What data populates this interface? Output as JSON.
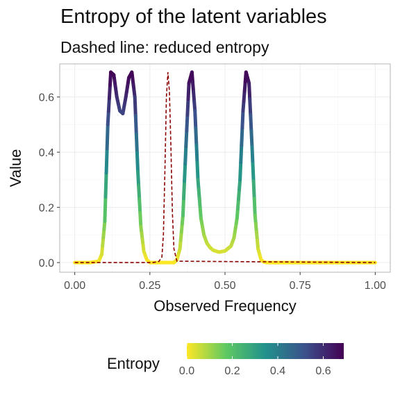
{
  "chart_data": {
    "type": "line",
    "title": "Entropy of the latent variables",
    "subtitle": "Dashed line: reduced entropy",
    "xlabel": "Observed Frequency",
    "ylabel": "Value",
    "xlim": [
      -0.05,
      1.05
    ],
    "ylim": [
      -0.035,
      0.72
    ],
    "x_ticks": [
      "0.00",
      "0.25",
      "0.50",
      "0.75",
      "1.00"
    ],
    "x_tick_values": [
      0,
      0.25,
      0.5,
      0.75,
      1
    ],
    "y_ticks": [
      "0.0",
      "0.2",
      "0.4",
      "0.6"
    ],
    "y_tick_values": [
      0,
      0.2,
      0.4,
      0.6
    ],
    "grid": true,
    "series": [
      {
        "style": "thick-line-colored-by-value",
        "x": [
          0,
          0.05,
          0.08,
          0.09,
          0.1,
          0.11,
          0.12,
          0.13,
          0.14,
          0.15,
          0.16,
          0.17,
          0.18,
          0.19,
          0.2,
          0.21,
          0.22,
          0.23,
          0.24,
          0.25,
          0.26,
          0.27,
          0.28,
          0.29,
          0.3,
          0.31,
          0.33,
          0.34,
          0.35,
          0.36,
          0.37,
          0.38,
          0.39,
          0.4,
          0.41,
          0.42,
          0.43,
          0.44,
          0.45,
          0.46,
          0.48,
          0.5,
          0.52,
          0.53,
          0.54,
          0.55,
          0.56,
          0.57,
          0.58,
          0.59,
          0.6,
          0.61,
          0.62,
          0.63,
          0.64,
          0.66,
          0.7,
          0.8,
          0.9,
          1
        ],
        "values": [
          0,
          0,
          0.005,
          0.03,
          0.15,
          0.5,
          0.69,
          0.68,
          0.6,
          0.55,
          0.54,
          0.6,
          0.67,
          0.69,
          0.6,
          0.33,
          0.13,
          0.04,
          0.01,
          0,
          0,
          0,
          0,
          0,
          0,
          0,
          0,
          0.01,
          0.05,
          0.17,
          0.42,
          0.65,
          0.69,
          0.55,
          0.3,
          0.16,
          0.1,
          0.07,
          0.055,
          0.045,
          0.038,
          0.042,
          0.06,
          0.09,
          0.16,
          0.3,
          0.55,
          0.69,
          0.65,
          0.42,
          0.17,
          0.05,
          0.01,
          0.002,
          0,
          0,
          0,
          0,
          0,
          0
        ]
      },
      {
        "style": "dashed",
        "color": "#8b0000",
        "x": [
          0,
          0.26,
          0.28,
          0.29,
          0.295,
          0.3,
          0.305,
          0.31,
          0.315,
          0.32,
          0.325,
          0.33,
          0.34,
          1
        ],
        "values": [
          0,
          0,
          0.004,
          0.02,
          0.1,
          0.33,
          0.6,
          0.69,
          0.62,
          0.42,
          0.18,
          0.05,
          0.005,
          0
        ]
      }
    ],
    "legend": {
      "title": "Entropy",
      "placement": "bottom",
      "type": "colorbar",
      "palette": "viridis",
      "ticks": [
        "0.0",
        "0.2",
        "0.4",
        "0.6"
      ],
      "tick_values": [
        0,
        0.2,
        0.4,
        0.6
      ],
      "range": [
        0,
        0.69
      ]
    }
  }
}
